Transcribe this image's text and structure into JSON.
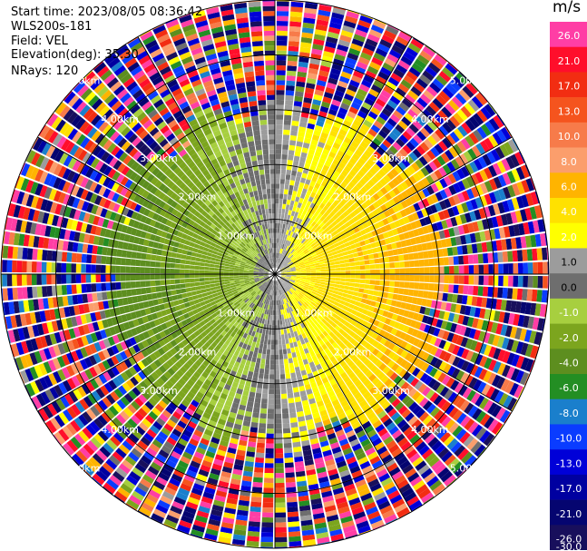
{
  "header": {
    "start_time": "Start time: 2023/08/05 08:36:42",
    "instrument": "WLS200s-181",
    "field": "Field: VEL",
    "elevation": "Elevation(deg): 35.30",
    "nrays": "NRays: 120"
  },
  "colorbar": {
    "unit": "m/s",
    "labels": [
      "26.0",
      "21.0",
      "17.0",
      "13.0",
      "10.0",
      "8.0",
      "6.0",
      "4.0",
      "2.0",
      "1.0",
      "0.0",
      "-1.0",
      "-2.0",
      "-4.0",
      "-6.0",
      "-8.0",
      "-10.0",
      "-13.0",
      "-17.0",
      "-21.0",
      "-26.0",
      "-30.0"
    ],
    "colors": [
      "#ff3ea5",
      "#ff0e2b",
      "#f22d12",
      "#f5541e",
      "#f77b4a",
      "#fb9e6c",
      "#ffb400",
      "#ffe100",
      "#ffff00",
      "#9c9c9c",
      "#6e6e6e",
      "#a7cf3f",
      "#7ca51e",
      "#5d8e1f",
      "#238e23",
      "#1a7fcc",
      "#0a3cff",
      "#0000d8",
      "#0000a0",
      "#050570",
      "#180f5c"
    ]
  },
  "chart_data": {
    "type": "ppi",
    "field": "VEL",
    "unit": "m/s",
    "elevation_deg": 35.3,
    "nrays": 120,
    "range_ring_labels": [
      "1.00km",
      "2.00km",
      "3.00km",
      "4.00km",
      "5.00km"
    ],
    "max_range_km": 5.0,
    "vmin": -30.0,
    "vmax": 26.0,
    "pattern": "approaching (-) velocities west, receding (+) velocities east; noisy data beyond ~3 km"
  }
}
